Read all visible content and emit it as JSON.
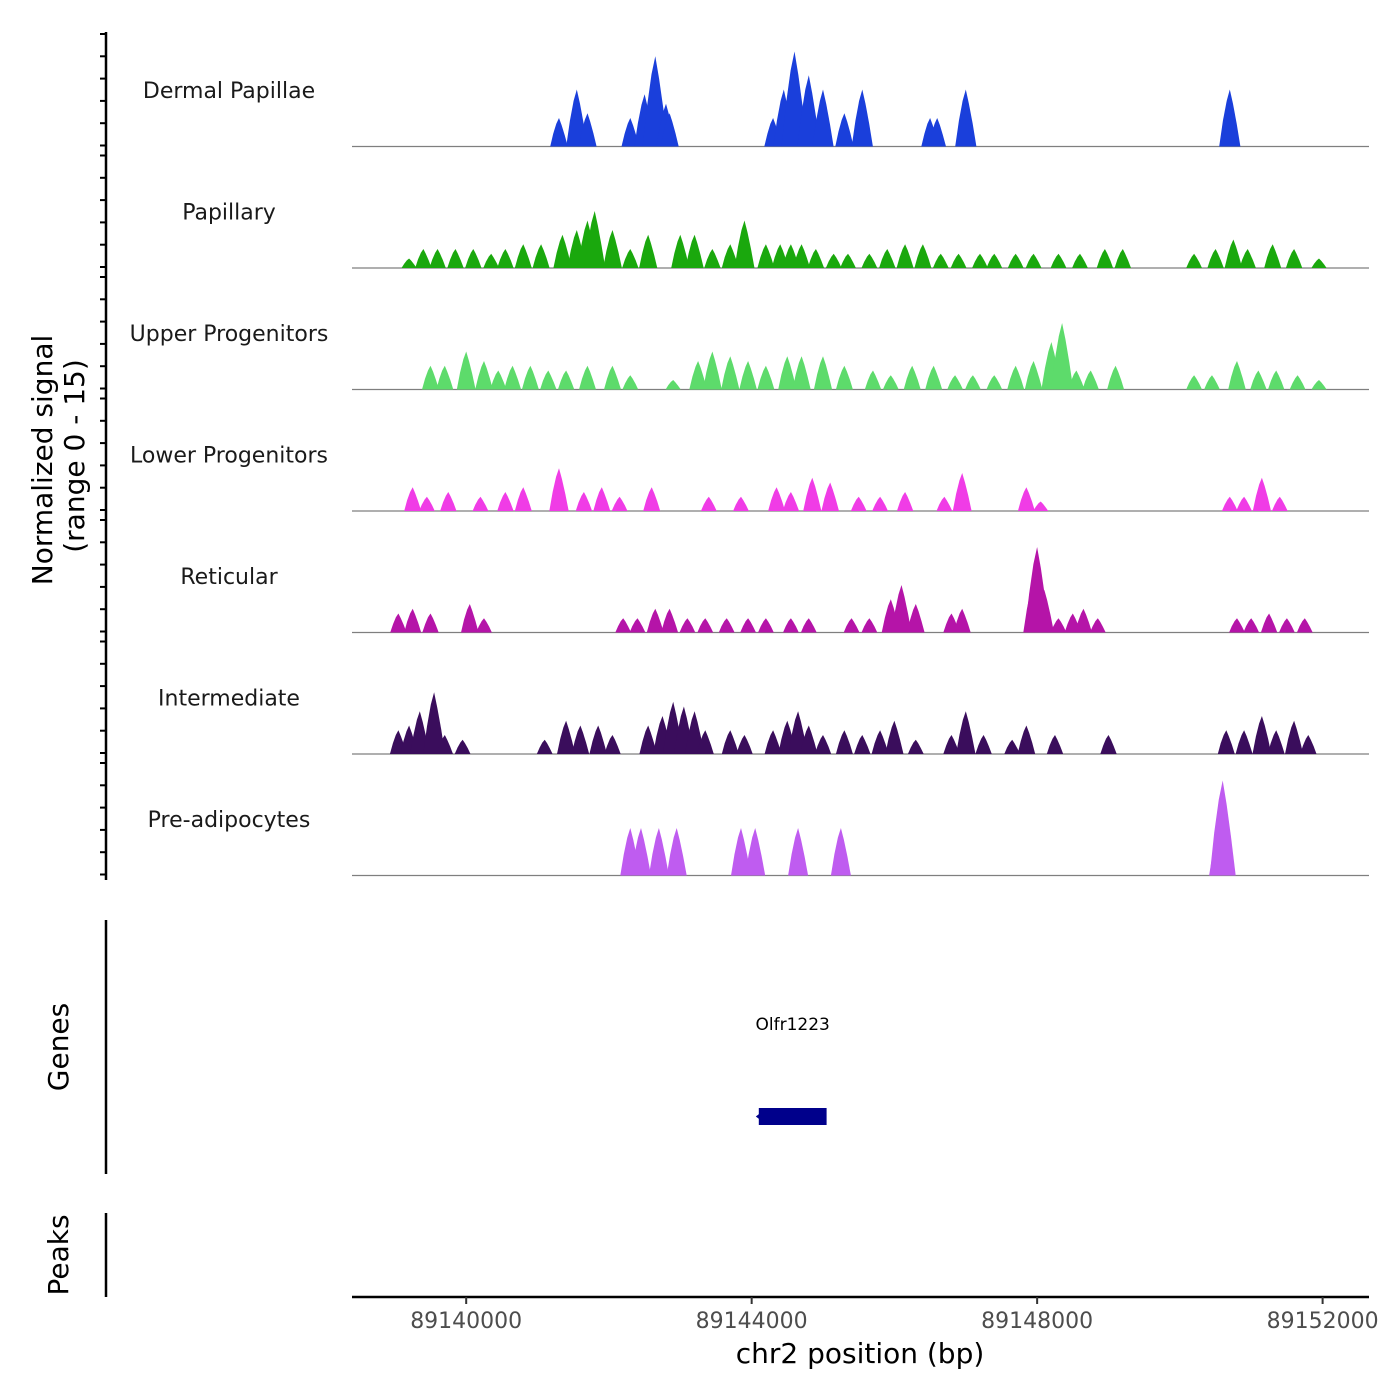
{
  "chart_data": {
    "type": "area",
    "chromosome": "chr2",
    "x_range": [
      89138400,
      89152650
    ],
    "signal_range": [
      0,
      15
    ],
    "ylabel": "Normalized signal",
    "ylabel_range": "(range 0 - 15)",
    "xlabel": "chr2 position (bp)",
    "x_ticks": [
      {
        "value": 89140000,
        "label": "89140000"
      },
      {
        "value": 89144000,
        "label": "89144000"
      },
      {
        "value": 89148000,
        "label": "89148000"
      },
      {
        "value": 89152000,
        "label": "89152000"
      }
    ],
    "series": [
      {
        "name": "Dermal Papillae",
        "color": "#1a3fdb",
        "peaks": [
          [
            89141300,
            0.3
          ],
          [
            89141550,
            0.6
          ],
          [
            89141700,
            0.35
          ],
          [
            89142300,
            0.3
          ],
          [
            89142500,
            0.55
          ],
          [
            89142650,
            0.95
          ],
          [
            89142800,
            0.45
          ],
          [
            89142850,
            0.35
          ],
          [
            89144300,
            0.3
          ],
          [
            89144450,
            0.6
          ],
          [
            89144600,
            1.0
          ],
          [
            89144800,
            0.75
          ],
          [
            89145000,
            0.6
          ],
          [
            89145300,
            0.35
          ],
          [
            89145550,
            0.6
          ],
          [
            89146500,
            0.3
          ],
          [
            89146600,
            0.3
          ],
          [
            89147000,
            0.6
          ],
          [
            89150700,
            0.6
          ]
        ]
      },
      {
        "name": "Papillary",
        "color": "#1aa80d",
        "peaks": [
          [
            89139200,
            0.1
          ],
          [
            89139400,
            0.2
          ],
          [
            89139600,
            0.2
          ],
          [
            89139850,
            0.2
          ],
          [
            89140100,
            0.2
          ],
          [
            89140350,
            0.15
          ],
          [
            89140550,
            0.2
          ],
          [
            89140800,
            0.25
          ],
          [
            89141050,
            0.25
          ],
          [
            89141350,
            0.35
          ],
          [
            89141550,
            0.4
          ],
          [
            89141700,
            0.5
          ],
          [
            89141800,
            0.6
          ],
          [
            89142050,
            0.4
          ],
          [
            89142300,
            0.2
          ],
          [
            89142550,
            0.35
          ],
          [
            89143000,
            0.35
          ],
          [
            89143200,
            0.35
          ],
          [
            89143450,
            0.2
          ],
          [
            89143700,
            0.25
          ],
          [
            89143900,
            0.5
          ],
          [
            89144200,
            0.25
          ],
          [
            89144400,
            0.25
          ],
          [
            89144550,
            0.25
          ],
          [
            89144700,
            0.25
          ],
          [
            89144900,
            0.2
          ],
          [
            89145150,
            0.15
          ],
          [
            89145350,
            0.15
          ],
          [
            89145650,
            0.15
          ],
          [
            89145900,
            0.2
          ],
          [
            89146150,
            0.25
          ],
          [
            89146400,
            0.25
          ],
          [
            89146650,
            0.15
          ],
          [
            89146900,
            0.15
          ],
          [
            89147200,
            0.15
          ],
          [
            89147400,
            0.15
          ],
          [
            89147700,
            0.15
          ],
          [
            89147950,
            0.15
          ],
          [
            89148300,
            0.15
          ],
          [
            89148600,
            0.15
          ],
          [
            89148950,
            0.2
          ],
          [
            89149200,
            0.2
          ],
          [
            89150200,
            0.15
          ],
          [
            89150500,
            0.2
          ],
          [
            89150750,
            0.3
          ],
          [
            89150950,
            0.2
          ],
          [
            89151300,
            0.25
          ],
          [
            89151600,
            0.2
          ],
          [
            89151950,
            0.1
          ]
        ]
      },
      {
        "name": "Upper Progenitors",
        "color": "#5ddb6b",
        "peaks": [
          [
            89139500,
            0.25
          ],
          [
            89139700,
            0.25
          ],
          [
            89140000,
            0.4
          ],
          [
            89140250,
            0.3
          ],
          [
            89140450,
            0.2
          ],
          [
            89140650,
            0.25
          ],
          [
            89140900,
            0.25
          ],
          [
            89141150,
            0.2
          ],
          [
            89141400,
            0.2
          ],
          [
            89141700,
            0.25
          ],
          [
            89142050,
            0.25
          ],
          [
            89142300,
            0.15
          ],
          [
            89142900,
            0.1
          ],
          [
            89143250,
            0.3
          ],
          [
            89143450,
            0.4
          ],
          [
            89143700,
            0.35
          ],
          [
            89143950,
            0.3
          ],
          [
            89144200,
            0.25
          ],
          [
            89144500,
            0.35
          ],
          [
            89144700,
            0.35
          ],
          [
            89145000,
            0.35
          ],
          [
            89145300,
            0.25
          ],
          [
            89145700,
            0.2
          ],
          [
            89145950,
            0.15
          ],
          [
            89146250,
            0.25
          ],
          [
            89146550,
            0.25
          ],
          [
            89146850,
            0.15
          ],
          [
            89147100,
            0.15
          ],
          [
            89147400,
            0.15
          ],
          [
            89147700,
            0.25
          ],
          [
            89147950,
            0.3
          ],
          [
            89148200,
            0.5
          ],
          [
            89148350,
            0.7
          ],
          [
            89148550,
            0.2
          ],
          [
            89148750,
            0.2
          ],
          [
            89149100,
            0.25
          ],
          [
            89150200,
            0.15
          ],
          [
            89150450,
            0.15
          ],
          [
            89150800,
            0.3
          ],
          [
            89151100,
            0.2
          ],
          [
            89151350,
            0.2
          ],
          [
            89151650,
            0.15
          ],
          [
            89151950,
            0.1
          ]
        ]
      },
      {
        "name": "Lower Progenitors",
        "color": "#f03ce6",
        "peaks": [
          [
            89139250,
            0.25
          ],
          [
            89139450,
            0.15
          ],
          [
            89139750,
            0.2
          ],
          [
            89140200,
            0.15
          ],
          [
            89140550,
            0.2
          ],
          [
            89140800,
            0.25
          ],
          [
            89141300,
            0.45
          ],
          [
            89141650,
            0.2
          ],
          [
            89141900,
            0.25
          ],
          [
            89142150,
            0.15
          ],
          [
            89142600,
            0.25
          ],
          [
            89143400,
            0.15
          ],
          [
            89143850,
            0.15
          ],
          [
            89144350,
            0.25
          ],
          [
            89144550,
            0.2
          ],
          [
            89144850,
            0.35
          ],
          [
            89145100,
            0.3
          ],
          [
            89145500,
            0.15
          ],
          [
            89145800,
            0.15
          ],
          [
            89146150,
            0.2
          ],
          [
            89146700,
            0.15
          ],
          [
            89146950,
            0.4
          ],
          [
            89147850,
            0.25
          ],
          [
            89148050,
            0.1
          ],
          [
            89150700,
            0.15
          ],
          [
            89150900,
            0.15
          ],
          [
            89151150,
            0.35
          ],
          [
            89151400,
            0.15
          ]
        ]
      },
      {
        "name": "Reticular",
        "color": "#b514a8",
        "peaks": [
          [
            89139050,
            0.2
          ],
          [
            89139250,
            0.25
          ],
          [
            89139500,
            0.2
          ],
          [
            89140050,
            0.3
          ],
          [
            89140250,
            0.15
          ],
          [
            89142200,
            0.15
          ],
          [
            89142400,
            0.15
          ],
          [
            89142650,
            0.25
          ],
          [
            89142850,
            0.25
          ],
          [
            89143100,
            0.15
          ],
          [
            89143350,
            0.15
          ],
          [
            89143650,
            0.15
          ],
          [
            89143950,
            0.15
          ],
          [
            89144200,
            0.15
          ],
          [
            89144550,
            0.15
          ],
          [
            89144800,
            0.15
          ],
          [
            89145400,
            0.15
          ],
          [
            89145650,
            0.15
          ],
          [
            89145950,
            0.35
          ],
          [
            89146100,
            0.5
          ],
          [
            89146300,
            0.3
          ],
          [
            89146800,
            0.2
          ],
          [
            89146950,
            0.25
          ],
          [
            89147950,
            0.55
          ],
          [
            89148000,
            0.9
          ],
          [
            89148100,
            0.45
          ],
          [
            89148300,
            0.15
          ],
          [
            89148500,
            0.2
          ],
          [
            89148650,
            0.25
          ],
          [
            89148850,
            0.15
          ],
          [
            89150800,
            0.15
          ],
          [
            89151000,
            0.15
          ],
          [
            89151250,
            0.2
          ],
          [
            89151500,
            0.15
          ],
          [
            89151750,
            0.15
          ]
        ]
      },
      {
        "name": "Intermediate",
        "color": "#3a0d5c",
        "peaks": [
          [
            89139050,
            0.25
          ],
          [
            89139200,
            0.3
          ],
          [
            89139350,
            0.45
          ],
          [
            89139550,
            0.65
          ],
          [
            89139700,
            0.2
          ],
          [
            89139950,
            0.15
          ],
          [
            89141100,
            0.15
          ],
          [
            89141400,
            0.35
          ],
          [
            89141600,
            0.3
          ],
          [
            89141850,
            0.3
          ],
          [
            89142050,
            0.2
          ],
          [
            89142550,
            0.3
          ],
          [
            89142750,
            0.4
          ],
          [
            89142900,
            0.55
          ],
          [
            89143050,
            0.5
          ],
          [
            89143200,
            0.45
          ],
          [
            89143350,
            0.25
          ],
          [
            89143700,
            0.25
          ],
          [
            89143900,
            0.2
          ],
          [
            89144300,
            0.25
          ],
          [
            89144500,
            0.35
          ],
          [
            89144650,
            0.45
          ],
          [
            89144800,
            0.3
          ],
          [
            89145000,
            0.2
          ],
          [
            89145300,
            0.25
          ],
          [
            89145550,
            0.2
          ],
          [
            89145800,
            0.25
          ],
          [
            89146000,
            0.35
          ],
          [
            89146300,
            0.15
          ],
          [
            89146800,
            0.2
          ],
          [
            89147000,
            0.45
          ],
          [
            89147250,
            0.2
          ],
          [
            89147650,
            0.15
          ],
          [
            89147850,
            0.3
          ],
          [
            89148250,
            0.2
          ],
          [
            89149000,
            0.2
          ],
          [
            89150650,
            0.25
          ],
          [
            89150900,
            0.25
          ],
          [
            89151150,
            0.4
          ],
          [
            89151350,
            0.25
          ],
          [
            89151600,
            0.35
          ],
          [
            89151800,
            0.2
          ]
        ]
      },
      {
        "name": "Pre-adipocytes",
        "color": "#bf5cf0",
        "peaks": [
          [
            89142300,
            0.5
          ],
          [
            89142450,
            0.5
          ],
          [
            89142700,
            0.5
          ],
          [
            89142950,
            0.5
          ],
          [
            89143850,
            0.5
          ],
          [
            89144050,
            0.5
          ],
          [
            89144650,
            0.5
          ],
          [
            89145250,
            0.5
          ],
          [
            89150550,
            0.5
          ],
          [
            89150600,
            1.0
          ]
        ]
      }
    ],
    "genes": [
      {
        "name": "Olfr1223",
        "start": 89144100,
        "end": 89145050,
        "strand": "-",
        "color": "#00008b"
      }
    ],
    "gene_track_label": "Genes",
    "peaks_track_label": "Peaks"
  }
}
